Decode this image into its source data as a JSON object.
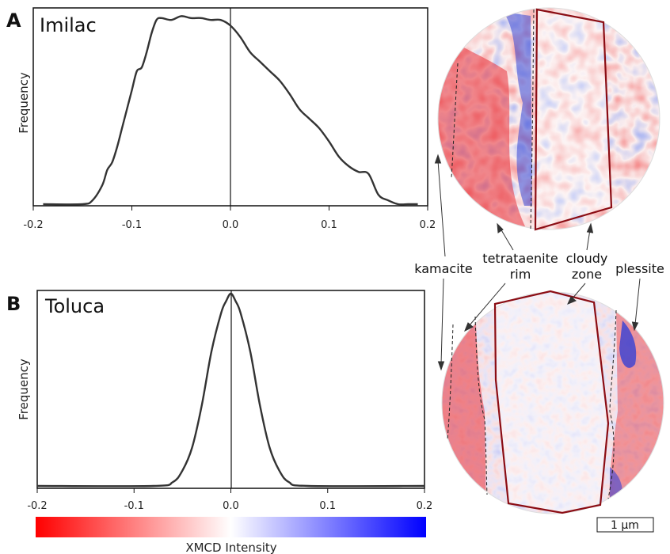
{
  "panels": [
    {
      "letter": "A",
      "title": "Imilac",
      "ylabel": "Frequency"
    },
    {
      "letter": "B",
      "title": "Toluca",
      "ylabel": "Frequency"
    }
  ],
  "chart_data": [
    {
      "type": "line",
      "title": "Imilac",
      "xlabel": "",
      "ylabel": "Frequency",
      "xlim": [
        -0.2,
        0.2
      ],
      "ticks": [
        "-0.2",
        "-0.1",
        "0.0",
        "0.1",
        "0.2"
      ],
      "tick_values": [
        -0.2,
        -0.1,
        0.0,
        0.1,
        0.2
      ],
      "x": [
        -0.19,
        -0.15,
        -0.14,
        -0.13,
        -0.125,
        -0.12,
        -0.115,
        -0.11,
        -0.105,
        -0.1,
        -0.095,
        -0.09,
        -0.085,
        -0.08,
        -0.075,
        -0.07,
        -0.06,
        -0.05,
        -0.04,
        -0.03,
        -0.02,
        -0.01,
        0.0,
        0.01,
        0.02,
        0.03,
        0.04,
        0.05,
        0.06,
        0.07,
        0.08,
        0.09,
        0.1,
        0.11,
        0.12,
        0.13,
        0.14,
        0.15,
        0.16,
        0.17,
        0.18,
        0.19
      ],
      "values": [
        0.0,
        0.0,
        0.02,
        0.1,
        0.18,
        0.22,
        0.3,
        0.4,
        0.5,
        0.6,
        0.7,
        0.72,
        0.8,
        0.9,
        0.97,
        0.98,
        0.97,
        0.99,
        0.98,
        0.98,
        0.97,
        0.97,
        0.94,
        0.88,
        0.8,
        0.75,
        0.7,
        0.65,
        0.58,
        0.5,
        0.45,
        0.4,
        0.33,
        0.25,
        0.2,
        0.17,
        0.16,
        0.05,
        0.02,
        0.0,
        0.0,
        0.0
      ]
    },
    {
      "type": "line",
      "title": "Toluca",
      "xlabel": "XMCD Intensity",
      "ylabel": "Frequency",
      "xlim": [
        -0.2,
        0.2
      ],
      "ticks": [
        "-0.2",
        "-0.1",
        "0.0",
        "0.1",
        "0.2"
      ],
      "tick_values": [
        -0.2,
        -0.1,
        0.0,
        0.1,
        0.2
      ],
      "x": [
        -0.2,
        -0.08,
        -0.06,
        -0.05,
        -0.04,
        -0.03,
        -0.02,
        -0.01,
        -0.005,
        0.0,
        0.005,
        0.01,
        0.02,
        0.03,
        0.04,
        0.05,
        0.06,
        0.08,
        0.2
      ],
      "values": [
        0.0,
        0.0,
        0.02,
        0.08,
        0.2,
        0.42,
        0.7,
        0.9,
        0.96,
        1.0,
        0.96,
        0.9,
        0.7,
        0.42,
        0.2,
        0.08,
        0.02,
        0.0,
        0.0
      ]
    }
  ],
  "colorbar": {
    "label": "XMCD Intensity",
    "colors": [
      "#ff0000",
      "#ffffff",
      "#0000ff"
    ],
    "range": [
      -0.2,
      0.2
    ]
  },
  "annotations": {
    "kamacite": "kamacite",
    "tetrataenite_line1": "tetrataenite",
    "tetrataenite_line2": "rim",
    "cloudy_line1": "cloudy",
    "cloudy_line2": "zone",
    "plessite": "plessite"
  },
  "scalebar": {
    "label": "1 µm"
  },
  "colors": {
    "red": "#e8262a",
    "blue": "#2a3bd8",
    "outline": "#8b0d14",
    "curve": "#333333"
  }
}
